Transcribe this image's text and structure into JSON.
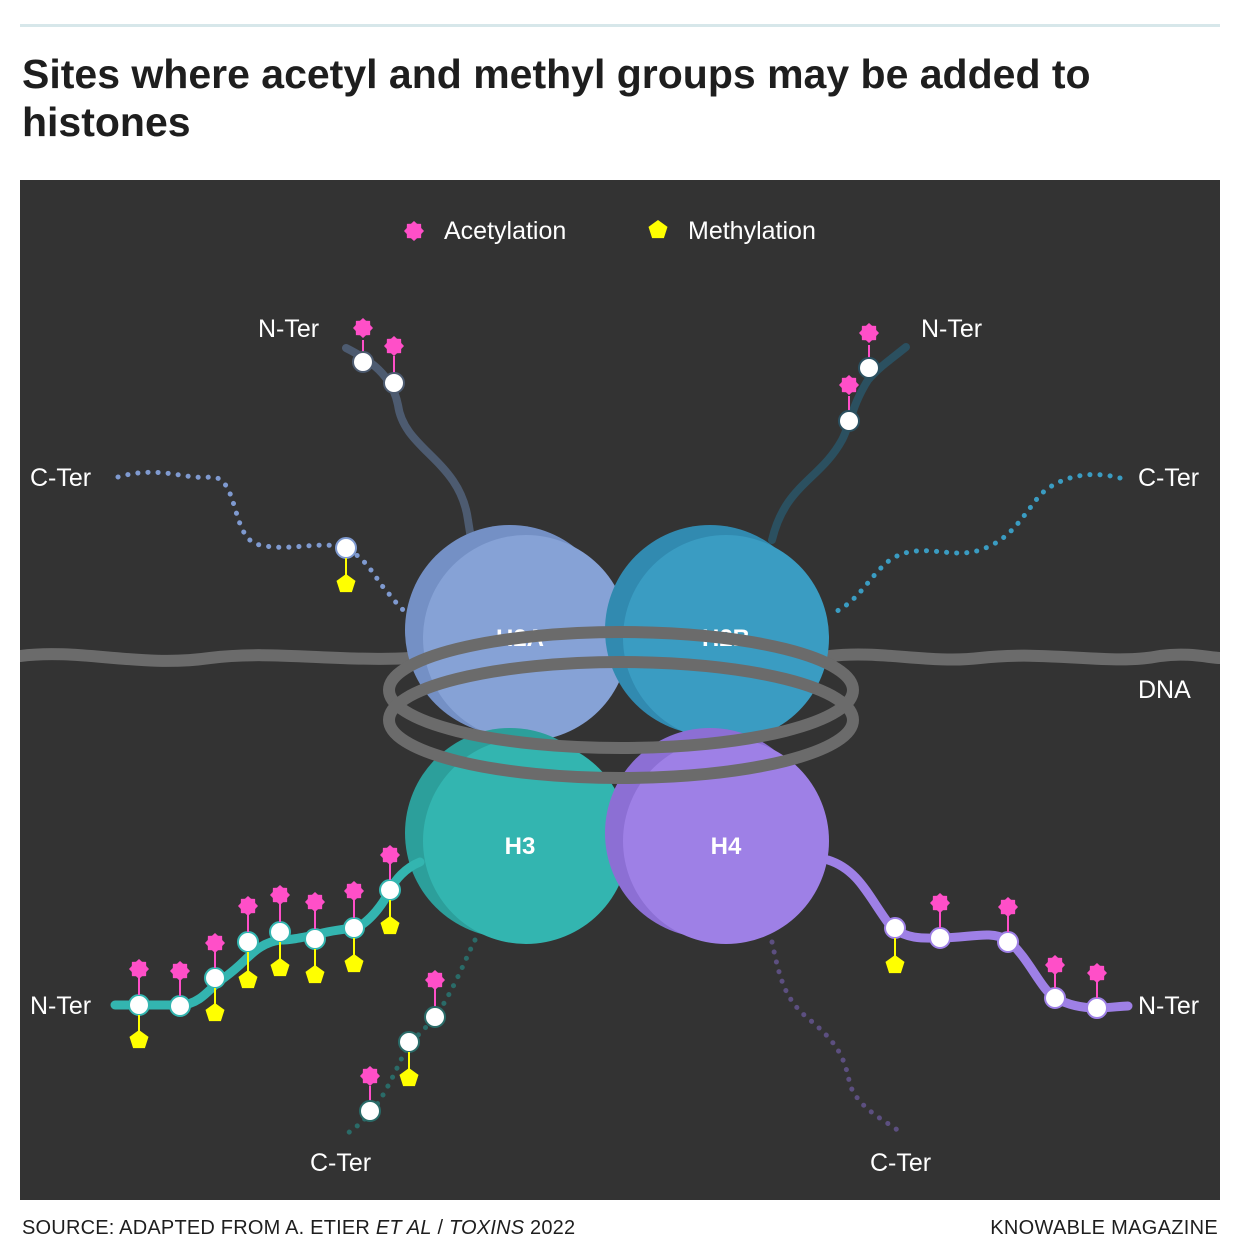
{
  "title": "Sites where acetyl and methyl groups may be added to histones",
  "legend": {
    "acetylation": "Acetylation",
    "methylation": "Methylation"
  },
  "histones": {
    "h2a": "H2A",
    "h2b": "H2B",
    "h3": "H3",
    "h4": "H4"
  },
  "labels": {
    "n_ter": "N-Ter",
    "c_ter": "C-Ter",
    "dna": "DNA"
  },
  "colors": {
    "panel": "#333333",
    "acetylation": "#ff4fc8",
    "methylation": "#ffff00",
    "h2a": "#86a2d6",
    "h2b": "#3a9cc2",
    "h3": "#33b5b0",
    "h4": "#9e80e6",
    "dna": "#6b6b6b"
  },
  "source": {
    "prefix": "SOURCE: ADAPTED FROM A. ETIER ",
    "authors": "ET AL",
    "separator": " / ",
    "journal": "TOXINS",
    "year": " 2022"
  },
  "brand": "KNOWABLE MAGAZINE"
}
